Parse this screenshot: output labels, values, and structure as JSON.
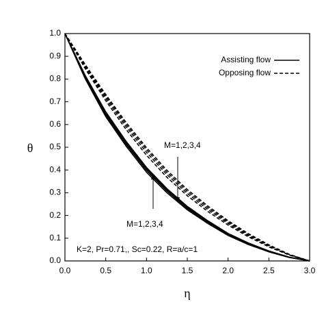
{
  "chart_data": {
    "type": "line",
    "xlabel": "η",
    "ylabel": "θ",
    "x": [
      0,
      0.25,
      0.5,
      0.75,
      1,
      1.25,
      1.5,
      1.75,
      2,
      2.25,
      2.5,
      2.75,
      3
    ],
    "series": [
      {
        "name": "Assisting flow",
        "color": "#000000",
        "style": "solid",
        "curves": [
          [
            1,
            0.8,
            0.635,
            0.505,
            0.39,
            0.3,
            0.225,
            0.165,
            0.112,
            0.072,
            0.04,
            0.015,
            0
          ],
          [
            1,
            0.805,
            0.643,
            0.513,
            0.398,
            0.307,
            0.231,
            0.17,
            0.116,
            0.075,
            0.042,
            0.016,
            0
          ],
          [
            1,
            0.81,
            0.65,
            0.52,
            0.405,
            0.313,
            0.236,
            0.174,
            0.119,
            0.077,
            0.043,
            0.016,
            0
          ],
          [
            1,
            0.815,
            0.656,
            0.526,
            0.411,
            0.318,
            0.24,
            0.177,
            0.121,
            0.079,
            0.044,
            0.017,
            0
          ]
        ]
      },
      {
        "name": "Opposing flow",
        "color": "#000000",
        "style": "dashed",
        "curves": [
          [
            1,
            0.845,
            0.705,
            0.578,
            0.465,
            0.368,
            0.287,
            0.218,
            0.158,
            0.106,
            0.062,
            0.026,
            0
          ],
          [
            1,
            0.852,
            0.715,
            0.59,
            0.478,
            0.38,
            0.297,
            0.227,
            0.165,
            0.111,
            0.065,
            0.027,
            0
          ],
          [
            1,
            0.858,
            0.724,
            0.6,
            0.489,
            0.39,
            0.306,
            0.235,
            0.171,
            0.116,
            0.068,
            0.028,
            0
          ],
          [
            1,
            0.863,
            0.732,
            0.609,
            0.498,
            0.399,
            0.314,
            0.242,
            0.177,
            0.12,
            0.071,
            0.029,
            0
          ]
        ]
      }
    ],
    "xlim": [
      0,
      3
    ],
    "ylim": [
      0,
      1
    ],
    "xticks": [
      {
        "value": 0,
        "label": "0.0"
      },
      0.5,
      {
        "value": 1,
        "label": "1.0"
      },
      1.5,
      {
        "value": 2,
        "label": "2.0"
      },
      2.5,
      {
        "value": 3,
        "label": "3.0"
      }
    ],
    "yticks": [
      {
        "value": 0,
        "label": "0.0"
      },
      0.1,
      0.2,
      0.3,
      0.4,
      0.5,
      0.6,
      0.7,
      0.8,
      0.9,
      {
        "value": 1,
        "label": "1.0"
      }
    ],
    "legend": "upper right",
    "annotations": [
      "M=1,2,3,4",
      "M=1,2,3,4",
      "K=2, Pr=0.71,, Sc=0.22, R=a/c=1"
    ]
  }
}
